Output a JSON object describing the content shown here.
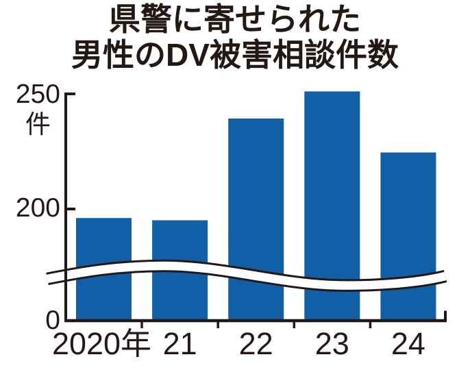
{
  "title": {
    "line1": "県警に寄せられた",
    "line2": "男性のDV被害相談件数"
  },
  "chart_data": {
    "type": "bar",
    "title": "県警に寄せられた男性のDV被害相談件数",
    "categories": [
      "2020年",
      "21",
      "22",
      "23",
      "24"
    ],
    "values": [
      196,
      195,
      240,
      252,
      225
    ],
    "unit_label": "件",
    "y_ticks": [
      "250",
      "200",
      "0"
    ],
    "ylim": [
      0,
      255
    ],
    "axis_break": true,
    "grid": false,
    "legend": false,
    "colors": {
      "bar": "#1160a7",
      "ink": "#231815",
      "background": "#ffffff"
    }
  }
}
